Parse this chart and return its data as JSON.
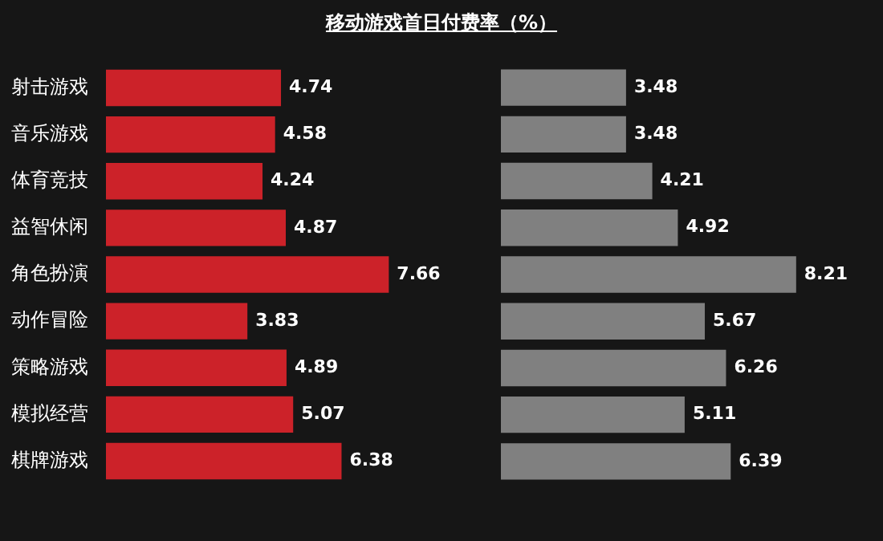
{
  "chart_data": [
    {
      "type": "bar",
      "orientation": "horizontal",
      "title": "移动游戏首日付费率（%）",
      "data_labels": true,
      "legend": false,
      "tick_labels": "y",
      "categories": [
        "射击游戏",
        "音乐游戏",
        "体育竞技",
        "益智休闲",
        "角色扮演",
        "动作冒险",
        "策略游戏",
        "模拟经营",
        "棋牌游戏"
      ],
      "series": [
        {
          "color": "#cc2229",
          "values": [
            4.74,
            4.58,
            4.24,
            4.87,
            7.66,
            3.83,
            4.89,
            5.07,
            6.38
          ]
        }
      ]
    },
    {
      "type": "bar",
      "orientation": "horizontal",
      "data_labels": true,
      "legend": false,
      "tick_labels": false,
      "categories": [
        null,
        null,
        null,
        null,
        null,
        null,
        null,
        null,
        null
      ],
      "series": [
        {
          "color": "#808080",
          "values": [
            3.48,
            3.48,
            4.21,
            4.92,
            8.21,
            5.67,
            6.26,
            5.11,
            6.39
          ]
        }
      ]
    }
  ]
}
